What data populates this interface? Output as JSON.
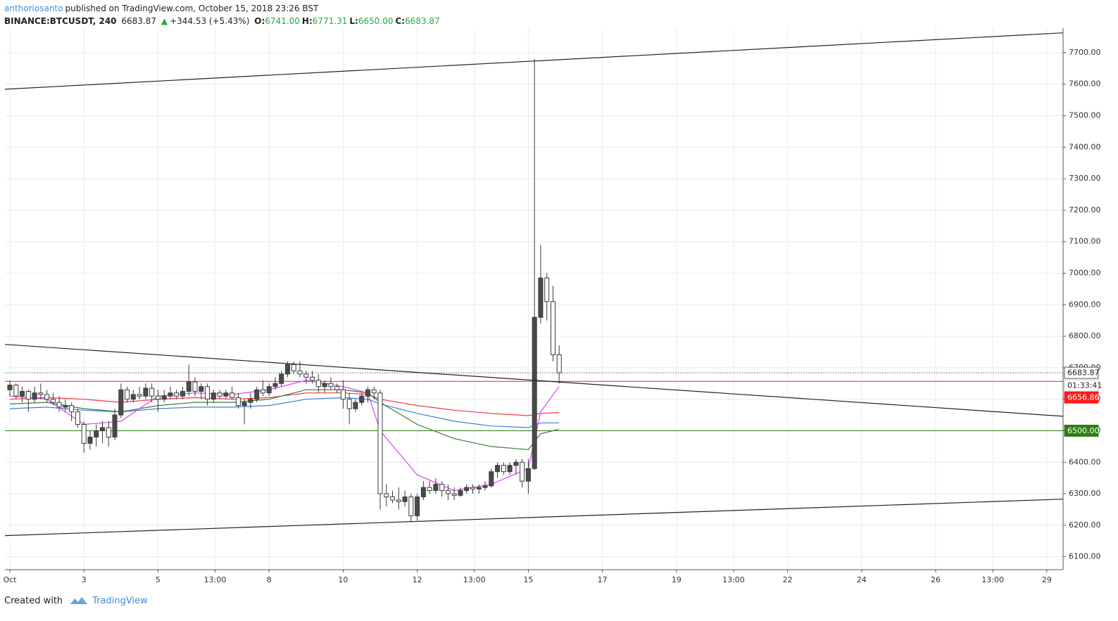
{
  "header": {
    "author": "anthoriosanto",
    "published": "published on TradingView.com, October 15, 2018 23:26 BST",
    "symbol": "BINANCE:BTCUSDT, 240",
    "last": "6683.87",
    "arrow": "▲",
    "change": "+344.53 (+5.43%)",
    "ohlc": [
      {
        "label": "O:",
        "value": "6741.00"
      },
      {
        "label": "H:",
        "value": "6771.31"
      },
      {
        "label": "L:",
        "value": "6650.00"
      },
      {
        "label": "C:",
        "value": "6683.87"
      }
    ]
  },
  "chart_data": {
    "type": "candlestick",
    "x": [
      1,
      1.167,
      1.333,
      1.5,
      1.667,
      1.833,
      2,
      2.167,
      2.333,
      2.5,
      2.667,
      2.833,
      3,
      3.167,
      3.333,
      3.5,
      3.667,
      3.833,
      4,
      4.167,
      4.333,
      4.5,
      4.667,
      4.833,
      5,
      5.167,
      5.333,
      5.5,
      5.667,
      5.833,
      6,
      6.167,
      6.333,
      6.5,
      6.667,
      6.833,
      7,
      7.167,
      7.333,
      7.5,
      7.667,
      7.833,
      8,
      8.167,
      8.333,
      8.5,
      8.667,
      8.833,
      9,
      9.167,
      9.333,
      9.5,
      9.667,
      9.833,
      10,
      10.167,
      10.333,
      10.5,
      10.667,
      10.833,
      11,
      11.167,
      11.333,
      11.5,
      11.667,
      11.833,
      12,
      12.167,
      12.333,
      12.5,
      12.667,
      12.833,
      13,
      13.167,
      13.333,
      13.5,
      13.667,
      13.833,
      14,
      14.167,
      14.333,
      14.5,
      14.667,
      14.833,
      15,
      15.167,
      15.333,
      15.5,
      15.667,
      15.833
    ],
    "open": [
      6630,
      6645,
      6610,
      6625,
      6600,
      6620,
      6615,
      6600,
      6590,
      6575,
      6580,
      6560,
      6520,
      6460,
      6480,
      6500,
      6510,
      6480,
      6550,
      6630,
      6600,
      6615,
      6610,
      6635,
      6610,
      6600,
      6610,
      6620,
      6610,
      6625,
      6655,
      6625,
      6640,
      6600,
      6620,
      6610,
      6620,
      6605,
      6580,
      6590,
      6600,
      6630,
      6620,
      6640,
      6650,
      6680,
      6710,
      6690,
      6680,
      6670,
      6660,
      6640,
      6650,
      6640,
      6630,
      6600,
      6570,
      6590,
      6610,
      6630,
      6620,
      6300,
      6290,
      6280,
      6275,
      6290,
      6230,
      6290,
      6320,
      6310,
      6330,
      6310,
      6300,
      6295,
      6310,
      6320,
      6315,
      6320,
      6325,
      6370,
      6390,
      6370,
      6390,
      6400,
      6340,
      6380,
      6860,
      6985,
      6910,
      6741
    ],
    "high": [
      6660,
      6650,
      6640,
      6630,
      6640,
      6650,
      6630,
      6620,
      6610,
      6600,
      6590,
      6570,
      6530,
      6500,
      6520,
      6530,
      6530,
      6570,
      6650,
      6640,
      6630,
      6640,
      6650,
      6650,
      6630,
      6630,
      6640,
      6630,
      6640,
      6710,
      6670,
      6650,
      6650,
      6630,
      6630,
      6630,
      6640,
      6620,
      6600,
      6620,
      6640,
      6660,
      6650,
      6670,
      6690,
      6720,
      6720,
      6720,
      6690,
      6690,
      6680,
      6660,
      6670,
      6650,
      6660,
      6620,
      6600,
      6620,
      6640,
      6640,
      6630,
      6330,
      6310,
      6320,
      6310,
      6300,
      6300,
      6340,
      6340,
      6350,
      6340,
      6330,
      6320,
      6320,
      6330,
      6330,
      6330,
      6340,
      6380,
      6400,
      6400,
      6400,
      6410,
      6410,
      6410,
      7680,
      7090,
      7000,
      6960,
      6771.31
    ],
    "low": [
      6610,
      6600,
      6590,
      6560,
      6590,
      6600,
      6590,
      6580,
      6560,
      6560,
      6530,
      6510,
      6430,
      6440,
      6450,
      6460,
      6450,
      6470,
      6540,
      6590,
      6590,
      6600,
      6600,
      6590,
      6560,
      6590,
      6600,
      6600,
      6600,
      6610,
      6610,
      6600,
      6580,
      6590,
      6600,
      6600,
      6600,
      6570,
      6520,
      6570,
      6590,
      6610,
      6610,
      6630,
      6640,
      6670,
      6680,
      6670,
      6650,
      6650,
      6620,
      6620,
      6630,
      6620,
      6570,
      6520,
      6560,
      6580,
      6590,
      6600,
      6250,
      6260,
      6270,
      6250,
      6260,
      6210,
      6215,
      6280,
      6300,
      6300,
      6290,
      6280,
      6280,
      6290,
      6300,
      6300,
      6300,
      6310,
      6320,
      6350,
      6360,
      6360,
      6360,
      6320,
      6300,
      6375,
      6840,
      6850,
      6720,
      6650
    ],
    "close": [
      6645,
      6610,
      6625,
      6600,
      6620,
      6615,
      6600,
      6590,
      6575,
      6580,
      6560,
      6520,
      6460,
      6480,
      6500,
      6510,
      6480,
      6550,
      6630,
      6600,
      6615,
      6610,
      6635,
      6610,
      6600,
      6610,
      6620,
      6610,
      6625,
      6655,
      6625,
      6640,
      6600,
      6620,
      6610,
      6620,
      6605,
      6580,
      6590,
      6600,
      6630,
      6620,
      6640,
      6650,
      6680,
      6710,
      6690,
      6680,
      6670,
      6660,
      6640,
      6650,
      6640,
      6630,
      6600,
      6570,
      6590,
      6610,
      6630,
      6620,
      6300,
      6290,
      6280,
      6275,
      6290,
      6230,
      6290,
      6320,
      6310,
      6330,
      6310,
      6300,
      6295,
      6310,
      6320,
      6315,
      6320,
      6325,
      6370,
      6390,
      6370,
      6390,
      6400,
      6340,
      6380,
      6860,
      6985,
      6910,
      6741,
      6683.87
    ],
    "up_color": "#4a4a4a",
    "down_color": "#ffffff",
    "series": [
      {
        "color": "#f23645",
        "x": [
          1,
          2,
          3,
          4,
          5,
          6,
          7,
          8,
          9,
          10,
          10.667,
          11,
          12,
          13,
          14,
          15,
          15.333,
          15.833
        ],
        "values": [
          6600,
          6605,
          6600,
          6590,
          6600,
          6605,
          6600,
          6605,
          6620,
          6620,
          6615,
          6600,
          6580,
          6565,
          6555,
          6548,
          6555,
          6558
        ]
      },
      {
        "color": "#3b7fd9",
        "x": [
          1,
          2,
          3,
          4,
          5,
          6,
          7,
          8,
          9,
          10,
          10.667,
          11,
          12,
          13,
          14,
          15,
          15.333,
          15.833
        ],
        "values": [
          6570,
          6575,
          6565,
          6560,
          6570,
          6575,
          6575,
          6580,
          6600,
          6605,
          6600,
          6585,
          6555,
          6530,
          6515,
          6510,
          6525,
          6525
        ]
      },
      {
        "color": "#3d7a35",
        "x": [
          1,
          2,
          3,
          4,
          5,
          6,
          7,
          8,
          9,
          10,
          10.667,
          11,
          12,
          13,
          14,
          15,
          15.333,
          15.833
        ],
        "values": [
          6585,
          6590,
          6570,
          6560,
          6580,
          6590,
          6590,
          6600,
          6630,
          6630,
          6620,
          6590,
          6520,
          6475,
          6450,
          6440,
          6490,
          6505
        ]
      },
      {
        "color": "#e040fb",
        "x": [
          1,
          2,
          3,
          4,
          5,
          6,
          7,
          8,
          9,
          10,
          10.667,
          11,
          12,
          13,
          14,
          15,
          15.333,
          15.833
        ],
        "values": [
          6610,
          6600,
          6520,
          6530,
          6610,
          6620,
          6615,
          6630,
          6660,
          6640,
          6620,
          6500,
          6360,
          6310,
          6330,
          6380,
          6560,
          6640
        ]
      }
    ],
    "trendlines": [
      {
        "color": "#222222",
        "x": [
          0.867,
          29.44
        ],
        "values": [
          7584,
          7763
        ]
      },
      {
        "color": "#222222",
        "x": [
          0.867,
          29.44
        ],
        "values": [
          6774,
          6546
        ]
      },
      {
        "color": "#222222",
        "x": [
          0.867,
          29.44
        ],
        "values": [
          6167,
          6283
        ]
      }
    ],
    "hlines": [
      {
        "value": 6683.87,
        "label": "6683.87",
        "color": "#555555",
        "style": "dotted"
      },
      {
        "value": 6656.86,
        "label": "6656.86",
        "color": "#ff1a1a",
        "style": "solid"
      },
      {
        "value": 6500,
        "label": "6500.00",
        "color": "#2e7d12",
        "style": "solid"
      }
    ],
    "countdown": "01:33:41",
    "xlim": [
      0.867,
      29.44
    ],
    "ylim": [
      6059,
      7778
    ],
    "xticks": [
      {
        "value": 1,
        "label": "Oct"
      },
      3,
      5,
      {
        "value": 6.542,
        "label": "13:00"
      },
      8,
      10,
      12,
      {
        "value": 13.542,
        "label": "13:00"
      },
      15,
      17,
      19,
      {
        "value": 20.542,
        "label": "13:00"
      },
      22,
      24,
      26,
      {
        "value": 27.542,
        "label": "13:00"
      },
      29
    ],
    "yticks": [
      {
        "value": 6100,
        "label": "6100.00"
      },
      {
        "value": 6200,
        "label": "6200.00"
      },
      {
        "value": 6300,
        "label": "6300.00"
      },
      {
        "value": 6400,
        "label": "6400.00"
      },
      {
        "value": 6500,
        "label": "6500.00"
      },
      {
        "value": 6600,
        "label": "6600.00"
      },
      {
        "value": 6700,
        "label": "6700.00"
      },
      {
        "value": 6800,
        "label": "6800.00"
      },
      {
        "value": 6900,
        "label": "6900.00"
      },
      {
        "value": 7000,
        "label": "7000.00"
      },
      {
        "value": 7100,
        "label": "7100.00"
      },
      {
        "value": 7200,
        "label": "7200.00"
      },
      {
        "value": 7300,
        "label": "7300.00"
      },
      {
        "value": 7400,
        "label": "7400.00"
      },
      {
        "value": 7500,
        "label": "7500.00"
      },
      {
        "value": 7600,
        "label": "7600.00"
      },
      {
        "value": 7700,
        "label": "7700.00"
      }
    ],
    "grid": true
  },
  "footer": {
    "created": "Created with",
    "brand": "TradingView"
  }
}
